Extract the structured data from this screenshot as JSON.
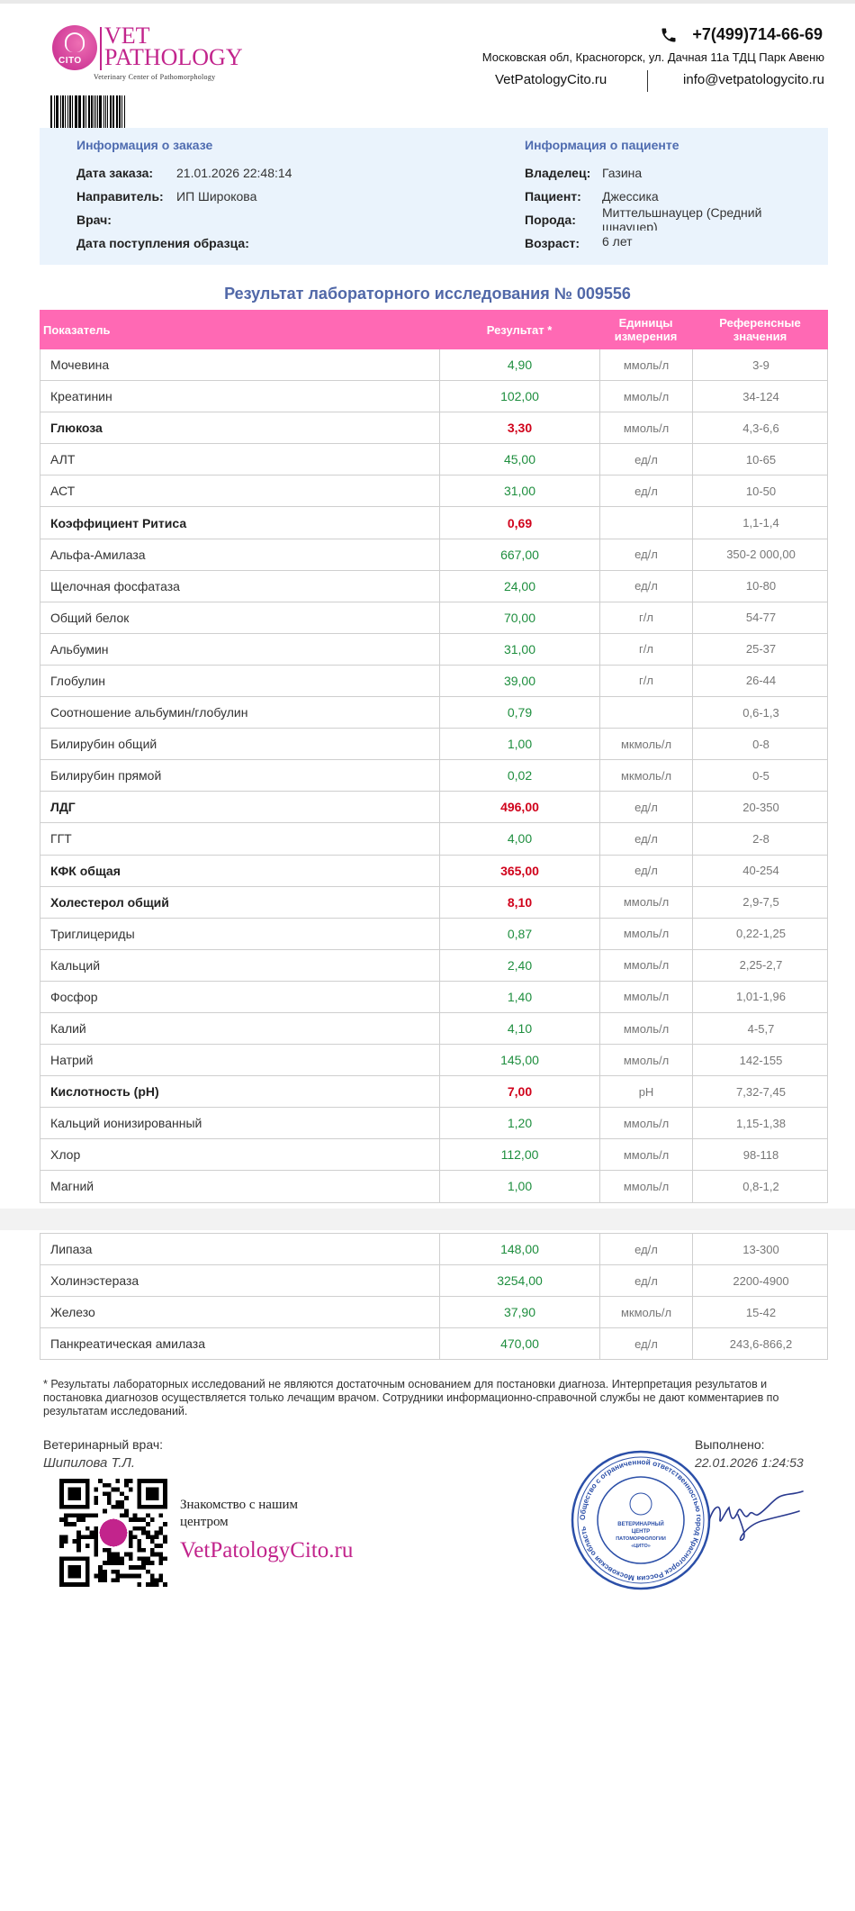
{
  "header": {
    "logo_line1": "VET",
    "logo_line2": "PATHOLOGY",
    "logo_badge": "CITO",
    "logo_tagline": "Veterinary Center of Pathomorphology",
    "phone": "+7(499)714-66-69",
    "address": "Московская обл, Красногорск, ул. Дачная 11а ТДЦ Парк Авеню",
    "site": "VetPatologyCito.ru",
    "email": "info@vetpatologycito.ru"
  },
  "order_info": {
    "heading": "Информация о заказе",
    "date_label": "Дата заказа:",
    "date_value": "21.01.2026 22:48:14",
    "referrer_label": "Направитель:",
    "referrer_value": "ИП Широкова",
    "doctor_label": "Врач:",
    "doctor_value": "",
    "sample_label": "Дата поступления образца:",
    "sample_value": ""
  },
  "patient_info": {
    "heading": "Информация о пациенте",
    "owner_label": "Владелец:",
    "owner_value": "Газина",
    "patient_label": "Пациент:",
    "patient_value": "Джессика",
    "breed_label": "Порода:",
    "breed_value_line1": "Миттельшнауцер (Средний",
    "breed_value_line2": "шнауцер)",
    "age_label": "Возраст:",
    "age_value": "6 лет"
  },
  "report_title": "Результат лабораторного  исследования № 009556",
  "table": {
    "headers": {
      "name": "Показатель",
      "result": "Результат *",
      "unit_line1": "Единицы",
      "unit_line2": "измерения",
      "ref_line1": "Референсные",
      "ref_line2": "значения"
    },
    "rows": [
      {
        "name": "Мочевина",
        "result": "4,90",
        "unit": "ммоль/л",
        "ref": "3-9",
        "abnormal": false
      },
      {
        "name": "Креатинин",
        "result": "102,00",
        "unit": "ммоль/л",
        "ref": "34-124",
        "abnormal": false
      },
      {
        "name": "Глюкоза",
        "result": "3,30",
        "unit": "ммоль/л",
        "ref": "4,3-6,6",
        "abnormal": true
      },
      {
        "name": "АЛТ",
        "result": "45,00",
        "unit": "ед/л",
        "ref": "10-65",
        "abnormal": false
      },
      {
        "name": "АСТ",
        "result": "31,00",
        "unit": "ед/л",
        "ref": "10-50",
        "abnormal": false
      },
      {
        "name": "Коэффициент Ритиса",
        "result": "0,69",
        "unit": "",
        "ref": "1,1-1,4",
        "abnormal": true
      },
      {
        "name": "Альфа-Амилаза",
        "result": "667,00",
        "unit": "ед/л",
        "ref": "350-2 000,00",
        "abnormal": false
      },
      {
        "name": "Щелочная фосфатаза",
        "result": "24,00",
        "unit": "ед/л",
        "ref": "10-80",
        "abnormal": false
      },
      {
        "name": "Общий белок",
        "result": "70,00",
        "unit": "г/л",
        "ref": "54-77",
        "abnormal": false
      },
      {
        "name": "Альбумин",
        "result": "31,00",
        "unit": "г/л",
        "ref": "25-37",
        "abnormal": false
      },
      {
        "name": "Глобулин",
        "result": "39,00",
        "unit": "г/л",
        "ref": "26-44",
        "abnormal": false
      },
      {
        "name": "Соотношение альбумин/глобулин",
        "result": "0,79",
        "unit": "",
        "ref": "0,6-1,3",
        "abnormal": false
      },
      {
        "name": "Билирубин общий",
        "result": "1,00",
        "unit": "мкмоль/л",
        "ref": "0-8",
        "abnormal": false
      },
      {
        "name": "Билирубин прямой",
        "result": "0,02",
        "unit": "мкмоль/л",
        "ref": "0-5",
        "abnormal": false
      },
      {
        "name": "ЛДГ",
        "result": "496,00",
        "unit": "ед/л",
        "ref": "20-350",
        "abnormal": true
      },
      {
        "name": "ГГТ",
        "result": "4,00",
        "unit": "ед/л",
        "ref": "2-8",
        "abnormal": false
      },
      {
        "name": "КФК общая",
        "result": "365,00",
        "unit": "ед/л",
        "ref": "40-254",
        "abnormal": true
      },
      {
        "name": "Холестерол общий",
        "result": "8,10",
        "unit": "ммоль/л",
        "ref": "2,9-7,5",
        "abnormal": true
      },
      {
        "name": "Триглицериды",
        "result": "0,87",
        "unit": "ммоль/л",
        "ref": "0,22-1,25",
        "abnormal": false
      },
      {
        "name": "Кальций",
        "result": "2,40",
        "unit": "ммоль/л",
        "ref": "2,25-2,7",
        "abnormal": false
      },
      {
        "name": "Фосфор",
        "result": "1,40",
        "unit": "ммоль/л",
        "ref": "1,01-1,96",
        "abnormal": false
      },
      {
        "name": "Калий",
        "result": "4,10",
        "unit": "ммоль/л",
        "ref": "4-5,7",
        "abnormal": false
      },
      {
        "name": "Натрий",
        "result": "145,00",
        "unit": "ммоль/л",
        "ref": "142-155",
        "abnormal": false
      },
      {
        "name": "Кислотность (pH)",
        "result": "7,00",
        "unit": "pH",
        "ref": "7,32-7,45",
        "abnormal": true
      },
      {
        "name": "Кальций ионизированный",
        "result": "1,20",
        "unit": "ммоль/л",
        "ref": "1,15-1,38",
        "abnormal": false
      },
      {
        "name": "Хлор",
        "result": "112,00",
        "unit": "ммоль/л",
        "ref": "98-118",
        "abnormal": false
      },
      {
        "name": "Магний",
        "result": "1,00",
        "unit": "ммоль/л",
        "ref": "0,8-1,2",
        "abnormal": false
      }
    ],
    "rows_page2": [
      {
        "name": "Липаза",
        "result": "148,00",
        "unit": "ед/л",
        "ref": "13-300",
        "abnormal": false
      },
      {
        "name": "Холинэстераза",
        "result": "3254,00",
        "unit": "ед/л",
        "ref": "2200-4900",
        "abnormal": false
      },
      {
        "name": "Железо",
        "result": "37,90",
        "unit": "мкмоль/л",
        "ref": "15-42",
        "abnormal": false
      },
      {
        "name": "Панкреатическая амилаза",
        "result": "470,00",
        "unit": "ед/л",
        "ref": "243,6-866,2",
        "abnormal": false
      }
    ]
  },
  "footnote": "* Результаты лабораторных исследований не являются достаточным основанием для постановки диагноза. Интерпретация результатов и постановка диагнозов осуществляется только лечащим врачом. Сотрудники информационно-справочной службы не дают комментариев по результатам исследований.",
  "signoff": {
    "vet_label": "Ветеринарный врач:",
    "vet_name": "Шипилова Т.Л.",
    "done_label": "Выполнено:",
    "done_value": "22.01.2026 1:24:53"
  },
  "promo": {
    "line1": "Знакомство с нашим",
    "line2": "центром",
    "site": "VetPatologyCito.ru"
  },
  "stamp_text": "Общество с ограниченной ответственностью город Красногорск Россия Московская область",
  "colors": {
    "brand": "#c2248c",
    "header_pink": "#ff69b4",
    "normal_result": "#1e8e3e",
    "abnormal_result": "#d0021b",
    "info_bg": "#eaf3fc",
    "stamp_blue": "#2b4fa8"
  }
}
